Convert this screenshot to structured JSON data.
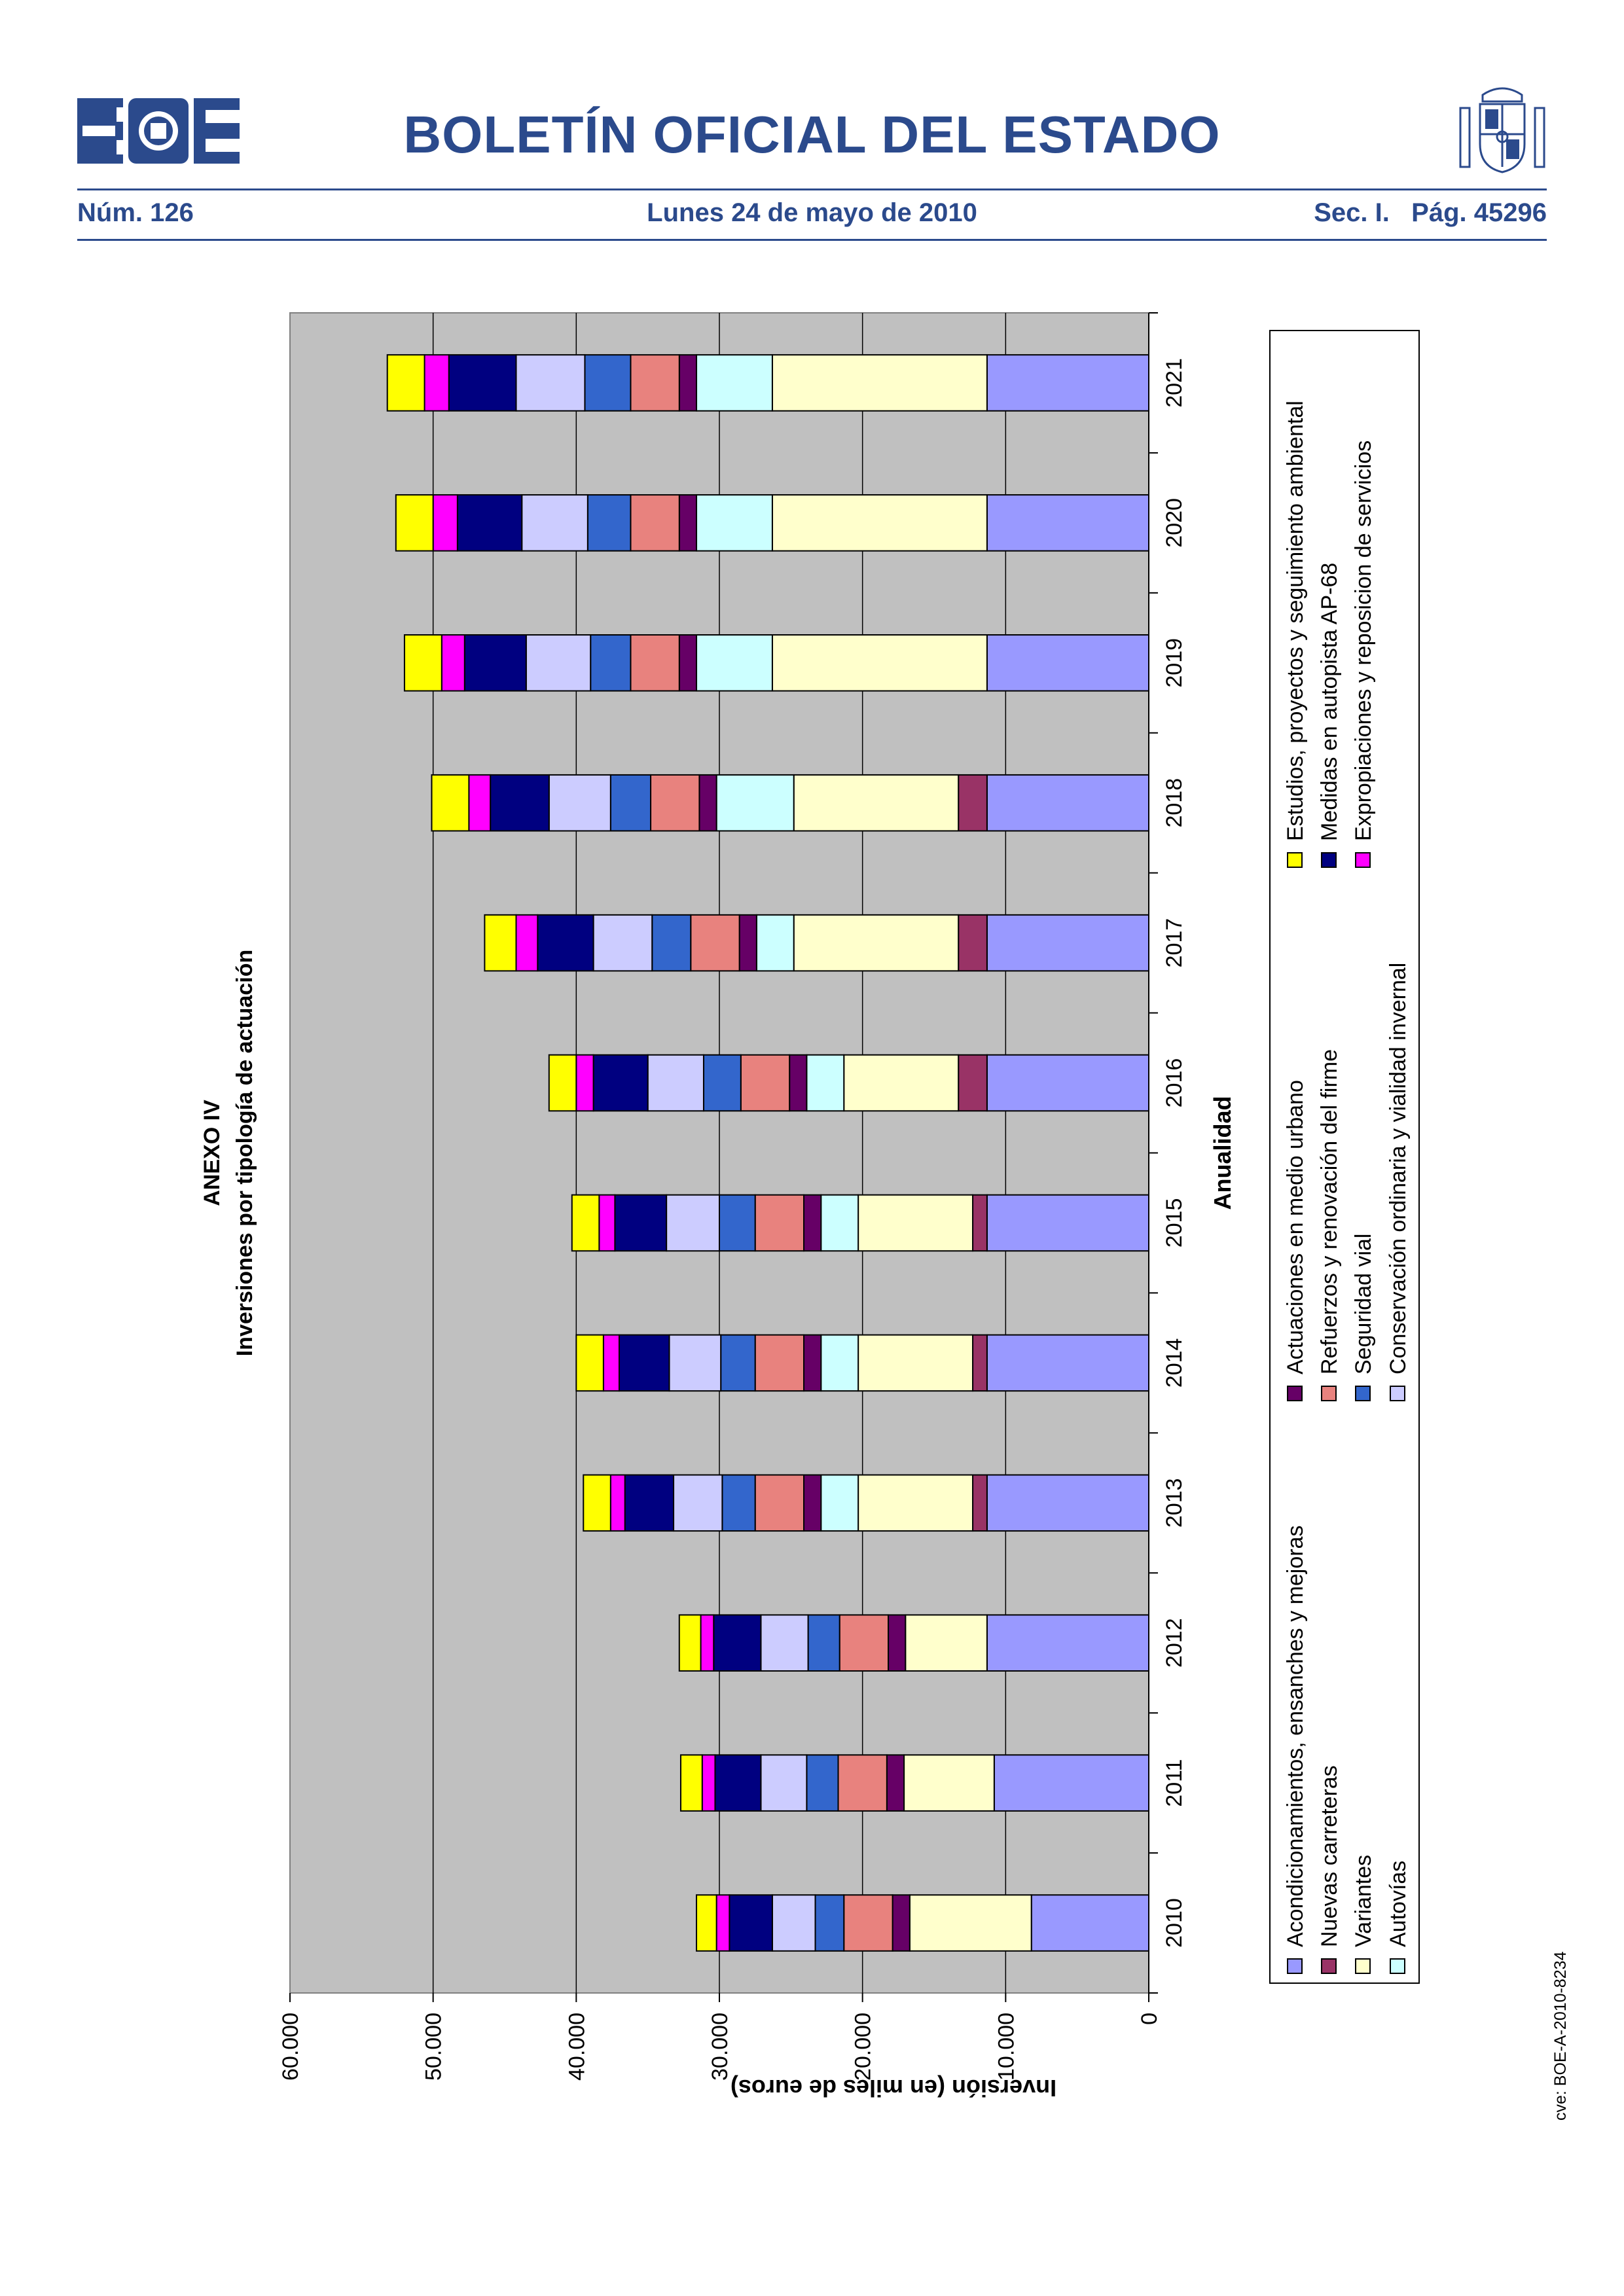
{
  "header": {
    "title": "BOLETÍN OFICIAL DEL ESTADO",
    "issue_number": "Núm. 126",
    "date": "Lunes 24 de mayo de 2010",
    "section_page": "Sec. I.   Pág. 45296",
    "logo_text": "BOE"
  },
  "footer": {
    "cve": "cve: BOE-A-2010-8234"
  },
  "colors": {
    "brand": "#2b4a8c",
    "plot_background": "#c0c0c0",
    "series": [
      "#9999ff",
      "#993366",
      "#ffffcc",
      "#ccffff",
      "#660066",
      "#e8827e",
      "#3366cc",
      "#ccccff",
      "#000080",
      "#ff00ff",
      "#ffff00"
    ]
  },
  "chart_data": {
    "type": "bar",
    "stacked": true,
    "orientation": "rotated page (bars drawn horizontally)",
    "title": "ANEXO IV",
    "subtitle": "Inversiones por tipología de actuación",
    "xlabel": "Anualidad",
    "ylabel": "Inversión (en miles de euros)",
    "ylim": [
      0,
      60000
    ],
    "yticks": [
      "0",
      "10.000",
      "20.000",
      "30.000",
      "40.000",
      "50.000",
      "60.000"
    ],
    "grid": true,
    "legend_position": "right",
    "categories": [
      "2010",
      "2011",
      "2012",
      "2013",
      "2014",
      "2015",
      "2016",
      "2017",
      "2018",
      "2019",
      "2020",
      "2021"
    ],
    "series": [
      {
        "name": "Acondicionamientos, ensanches y mejoras",
        "values": [
          8200,
          10800,
          11300,
          11300,
          11300,
          11300,
          11300,
          11300,
          11300,
          11300,
          11300,
          11300
        ]
      },
      {
        "name": "Nuevas carreteras",
        "values": [
          0,
          0,
          0,
          1000,
          1000,
          1000,
          2000,
          2000,
          2000,
          0,
          0,
          0
        ]
      },
      {
        "name": "Variantes",
        "values": [
          8500,
          6300,
          5700,
          8000,
          8000,
          8000,
          8000,
          11500,
          11500,
          15000,
          15000,
          15000
        ]
      },
      {
        "name": "Autovías",
        "values": [
          0,
          0,
          0,
          2600,
          2600,
          2600,
          2600,
          2600,
          5400,
          5300,
          5300,
          5300
        ]
      },
      {
        "name": "Actuaciones en medio urbano",
        "values": [
          1200,
          1200,
          1200,
          1200,
          1200,
          1200,
          1200,
          1200,
          1200,
          1200,
          1200,
          1200
        ]
      },
      {
        "name": "Refuerzos y renovación del firme",
        "values": [
          3400,
          3400,
          3400,
          3400,
          3400,
          3400,
          3400,
          3400,
          3400,
          3400,
          3400,
          3400
        ]
      },
      {
        "name": "Seguridad vial",
        "values": [
          2000,
          2200,
          2200,
          2300,
          2400,
          2500,
          2600,
          2700,
          2800,
          2800,
          3000,
          3200
        ]
      },
      {
        "name": "Conservación ordinaria y vialidad invernal",
        "values": [
          3000,
          3200,
          3300,
          3400,
          3600,
          3700,
          3900,
          4100,
          4300,
          4500,
          4600,
          4800
        ]
      },
      {
        "name": "Medidas en autopista AP-68",
        "values": [
          3000,
          3200,
          3300,
          3400,
          3500,
          3600,
          3800,
          3900,
          4100,
          4300,
          4500,
          4700
        ]
      },
      {
        "name": "Expropiaciones y reposicion de servicios",
        "values": [
          900,
          900,
          900,
          1000,
          1100,
          1100,
          1200,
          1500,
          1500,
          1600,
          1700,
          1700
        ]
      },
      {
        "name": "Estudios, proyectos y seguimiento ambiental",
        "values": [
          1400,
          1500,
          1500,
          1900,
          1900,
          1900,
          1900,
          2200,
          2600,
          2600,
          2600,
          2600
        ]
      }
    ],
    "legend_order": [
      0,
      1,
      2,
      3,
      4,
      5,
      6,
      7,
      10,
      8,
      9
    ]
  }
}
